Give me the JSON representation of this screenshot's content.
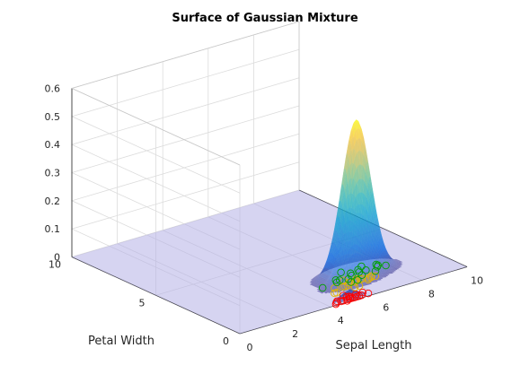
{
  "chart_data": {
    "type": "surface3d",
    "title": "Surface of Gaussian Mixture",
    "xlabel": "Sepal Length",
    "ylabel": "Petal Width",
    "zlabel": "",
    "xlim": [
      0,
      10
    ],
    "ylim": [
      0,
      10
    ],
    "zlim": [
      0,
      0.6
    ],
    "xticks": [
      "0",
      "2",
      "4",
      "6",
      "8",
      "10"
    ],
    "yticks": [
      "0",
      "5",
      "10"
    ],
    "zticks": [
      "0",
      "0.1",
      "0.2",
      "0.3",
      "0.4",
      "0.5",
      "0.6"
    ],
    "grid": true,
    "surface": {
      "components": [
        {
          "mu": [
            5.0,
            0.25
          ],
          "sigma": [
            0.35,
            0.12
          ],
          "peak": 0.03
        },
        {
          "mu": [
            5.9,
            1.35
          ],
          "sigma": [
            0.5,
            0.2
          ],
          "peak": 0.18
        },
        {
          "mu": [
            6.6,
            2.0
          ],
          "sigma": [
            0.6,
            0.3
          ],
          "peak": 0.55
        }
      ],
      "floor_color": "#b4b0e6",
      "colormap": "parula"
    },
    "series": [
      {
        "marker": "o",
        "color": "#ff0000",
        "points": [
          [
            4.9,
            0.2
          ],
          [
            5.0,
            0.2
          ],
          [
            5.1,
            0.3
          ],
          [
            4.7,
            0.2
          ],
          [
            4.6,
            0.2
          ],
          [
            5.4,
            0.4
          ],
          [
            4.4,
            0.2
          ],
          [
            4.8,
            0.1
          ],
          [
            5.2,
            0.2
          ],
          [
            5.5,
            0.2
          ],
          [
            5.0,
            0.4
          ],
          [
            5.1,
            0.2
          ],
          [
            5.7,
            0.4
          ],
          [
            5.3,
            0.2
          ],
          [
            4.5,
            0.3
          ],
          [
            5.0,
            0.6
          ],
          [
            5.4,
            0.2
          ],
          [
            4.3,
            0.1
          ],
          [
            5.8,
            0.2
          ],
          [
            5.1,
            0.4
          ]
        ]
      },
      {
        "marker": "o",
        "color": "#e3b400",
        "points": [
          [
            7.0,
            1.4
          ],
          [
            6.4,
            1.5
          ],
          [
            6.9,
            1.5
          ],
          [
            5.5,
            1.3
          ],
          [
            6.5,
            1.5
          ],
          [
            5.7,
            1.3
          ],
          [
            6.3,
            1.6
          ],
          [
            4.9,
            1.0
          ],
          [
            6.6,
            1.3
          ],
          [
            5.2,
            1.4
          ],
          [
            5.0,
            1.0
          ],
          [
            5.9,
            1.5
          ],
          [
            6.0,
            1.0
          ],
          [
            6.1,
            1.4
          ],
          [
            5.6,
            1.3
          ],
          [
            6.7,
            1.4
          ],
          [
            5.8,
            1.0
          ],
          [
            6.2,
            1.5
          ],
          [
            5.9,
            1.8
          ],
          [
            6.8,
            1.4
          ]
        ]
      },
      {
        "marker": "o",
        "color": "#00a000",
        "points": [
          [
            6.3,
            2.5
          ],
          [
            5.8,
            1.9
          ],
          [
            7.1,
            2.1
          ],
          [
            6.5,
            2.2
          ],
          [
            7.6,
            2.1
          ],
          [
            4.9,
            1.7
          ],
          [
            7.3,
            1.8
          ],
          [
            6.7,
            1.8
          ],
          [
            7.2,
            2.5
          ],
          [
            6.4,
            2.0
          ],
          [
            6.8,
            2.1
          ],
          [
            5.7,
            2.0
          ],
          [
            6.9,
            2.3
          ],
          [
            7.7,
            2.3
          ],
          [
            6.0,
            1.5
          ],
          [
            6.1,
            1.8
          ],
          [
            7.9,
            2.0
          ],
          [
            6.3,
            1.5
          ],
          [
            5.6,
            1.8
          ],
          [
            7.7,
            2.2
          ]
        ]
      }
    ]
  }
}
